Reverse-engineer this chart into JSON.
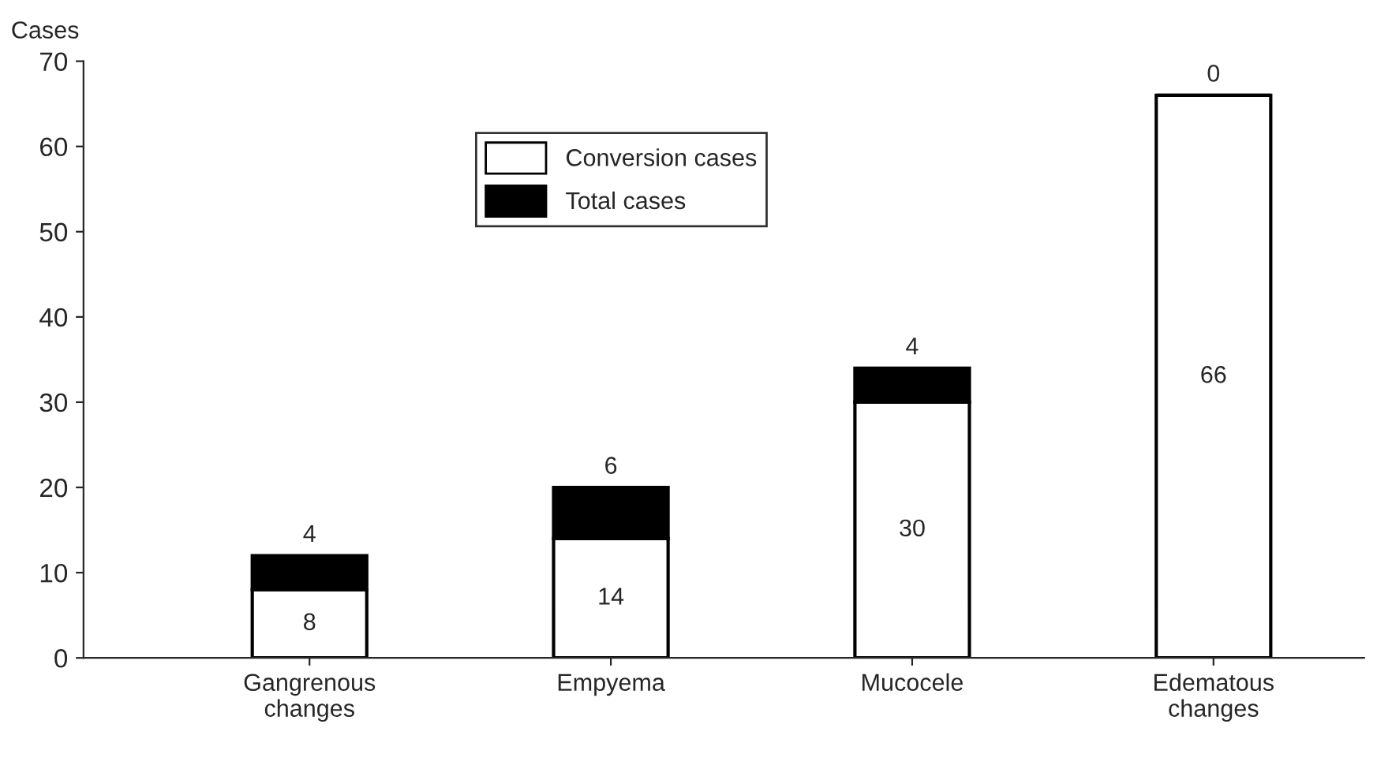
{
  "chart_data": {
    "type": "bar",
    "ylabel": "Cases",
    "categories": [
      "Gangrenous\nchanges",
      "Empyema",
      "Mucocele",
      "Edematous\nchanges"
    ],
    "stacked": true,
    "data_labels": true,
    "legend": "top",
    "ylim": [
      0,
      70
    ],
    "yticks": [
      0,
      10,
      20,
      30,
      40,
      50,
      60,
      70
    ],
    "grid": false,
    "series": [
      {
        "name": "Conversion cases",
        "color": "#ffffff",
        "values": [
          8,
          14,
          30,
          66
        ]
      },
      {
        "name": "Total cases",
        "color": "#000000",
        "values": [
          4,
          6,
          4,
          0
        ]
      }
    ]
  }
}
